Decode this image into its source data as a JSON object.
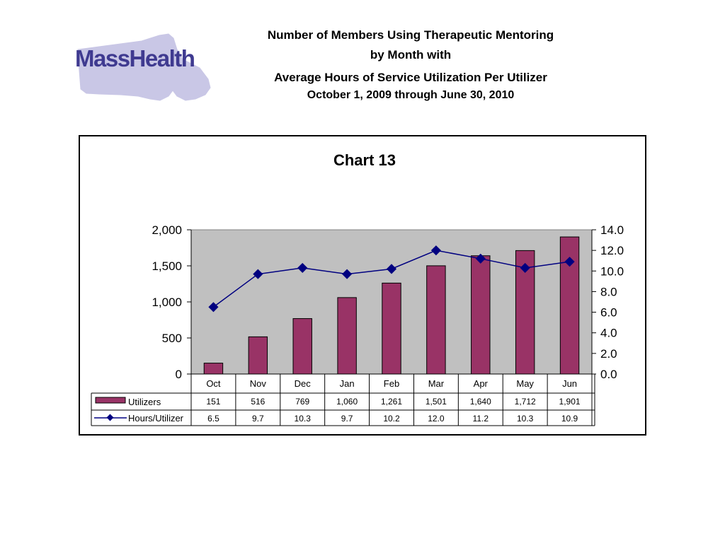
{
  "logo": {
    "text": "MassHealth",
    "colors": {
      "text": "#3f3a90",
      "map": "#c9c7e6"
    }
  },
  "header": {
    "line1": "Number of Members Using Therapeutic Mentoring",
    "line2": "by Month with",
    "line3": "Average Hours of Service Utilization Per Utilizer",
    "line4": "October 1, 2009 through June 30, 2010"
  },
  "chart_data": {
    "type": "bar",
    "title": "Chart 13",
    "categories": [
      "Oct",
      "Nov",
      "Dec",
      "Jan",
      "Feb",
      "Mar",
      "Apr",
      "May",
      "Jun"
    ],
    "series": [
      {
        "name": "Utilizers",
        "type": "bar",
        "axis": "left",
        "values": [
          151,
          516,
          769,
          1060,
          1261,
          1501,
          1640,
          1712,
          1901
        ],
        "labels": [
          "151",
          "516",
          "769",
          "1,060",
          "1,261",
          "1,501",
          "1,640",
          "1,712",
          "1,901"
        ],
        "color": "#993366"
      },
      {
        "name": "Hours/Utilizer",
        "type": "line",
        "axis": "right",
        "values": [
          6.5,
          9.7,
          10.3,
          9.7,
          10.2,
          12.0,
          11.2,
          10.3,
          10.9
        ],
        "labels": [
          "6.5",
          "9.7",
          "10.3",
          "9.7",
          "10.2",
          "12.0",
          "11.2",
          "10.3",
          "10.9"
        ],
        "color": "#000080"
      }
    ],
    "ylim": [
      0,
      2000
    ],
    "yticks": [
      0,
      500,
      1000,
      1500,
      2000
    ],
    "ytick_labels": [
      "0",
      "500",
      "1,000",
      "1,500",
      "2,000"
    ],
    "y2lim": [
      0,
      14
    ],
    "y2ticks": [
      0,
      2,
      4,
      6,
      8,
      10,
      12,
      14
    ],
    "y2tick_labels": [
      "0.0",
      "2.0",
      "4.0",
      "6.0",
      "8.0",
      "10.0",
      "12.0",
      "14.0"
    ],
    "plot_background": "#c0c0c0",
    "grid": false,
    "data_table": true
  }
}
